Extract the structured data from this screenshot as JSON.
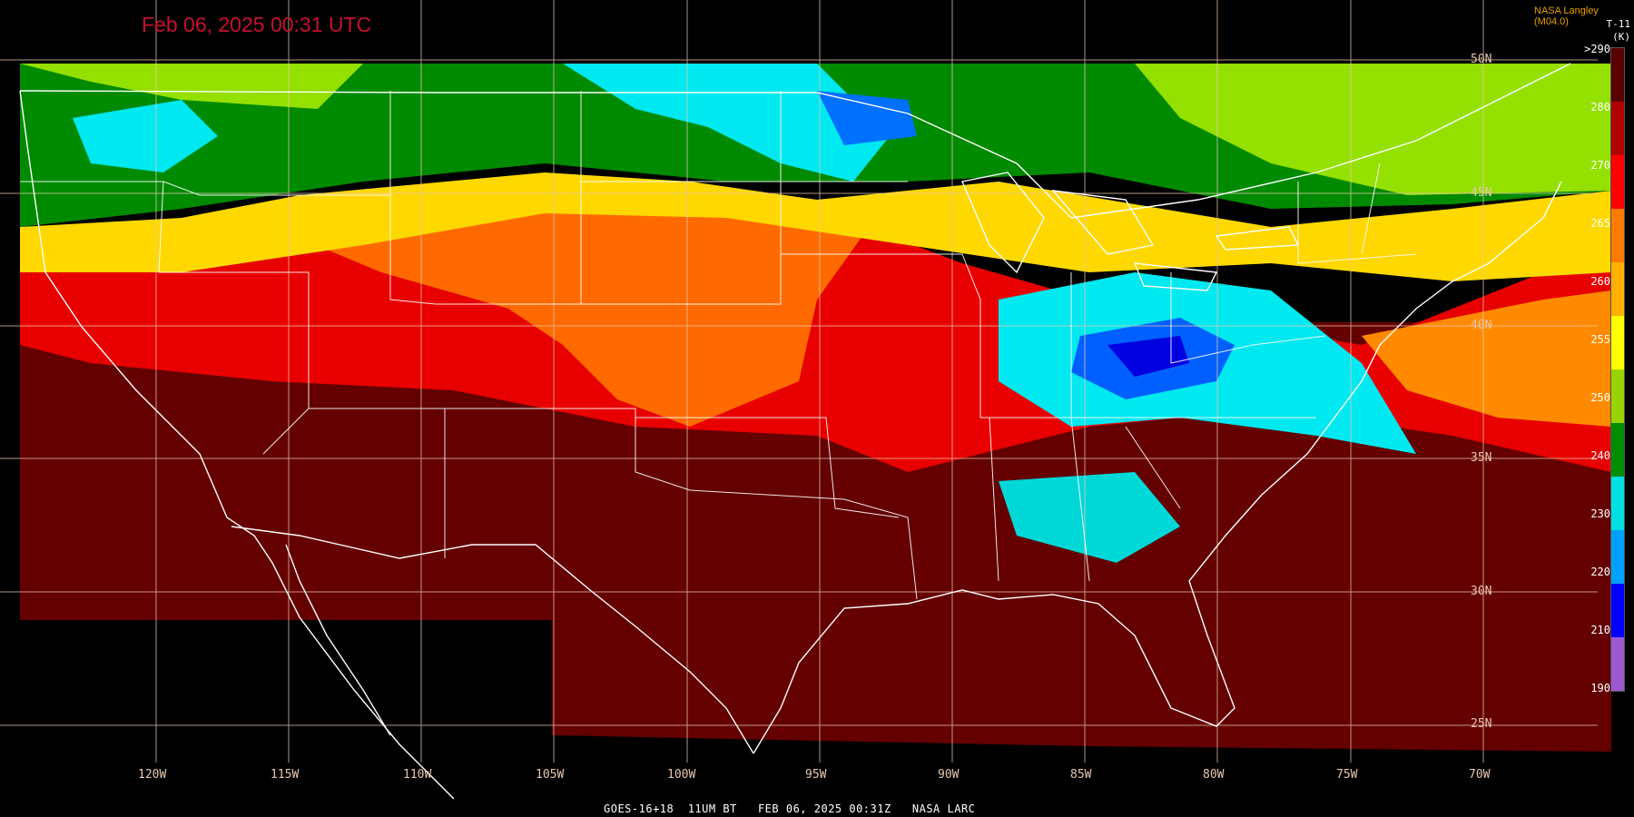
{
  "header": {
    "title": "Feb 06, 2025 00:31 UTC",
    "credit": "NASA Langley (M04.0)",
    "band": "T-11",
    "unit": "(K)"
  },
  "footer": {
    "text": "GOES-16+18  11UM BT   FEB 06, 2025 00:31Z   NASA LARC"
  },
  "map": {
    "longitude_labels": [
      "120W",
      "115W",
      "110W",
      "105W",
      "100W",
      "95W",
      "90W",
      "85W",
      "80W",
      "75W",
      "70W"
    ],
    "latitude_labels": [
      "50N",
      "45N",
      "40N",
      "35N",
      "30N",
      "25N"
    ]
  },
  "colorbar": {
    "labels": [
      ">290",
      "280",
      "270",
      "265",
      "260",
      "255",
      "250",
      "240",
      "230",
      "220",
      "210",
      "190"
    ],
    "colors": [
      "#5a0000",
      "#b00000",
      "#ff0000",
      "#ff7a00",
      "#ffb000",
      "#ffff00",
      "#9ad400",
      "#008c00",
      "#00e0e0",
      "#00a0ff",
      "#0000ff",
      "#9b59d0"
    ]
  }
}
